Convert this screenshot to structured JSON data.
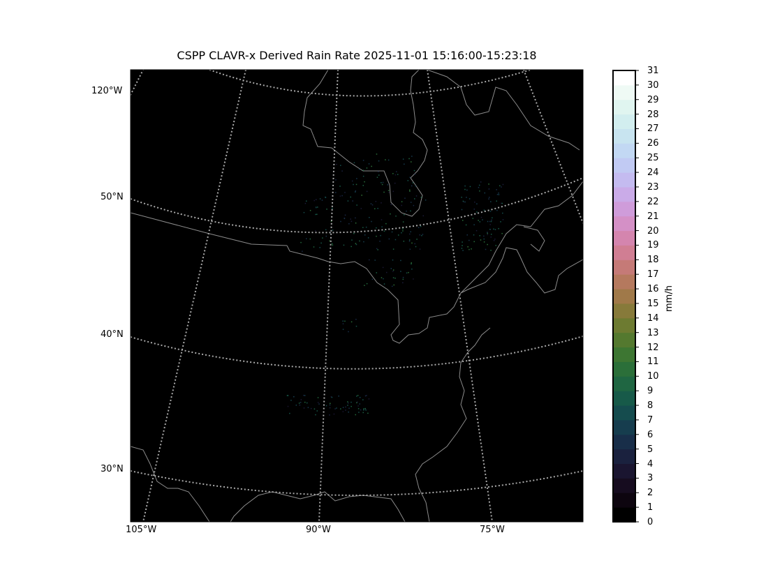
{
  "title": "CSPP CLAVR-x Derived Rain Rate 2025-11-01 15:16:00-15:23:18",
  "map": {
    "projection": "conic (curved lat/lon graticule)",
    "background_color": "#000000",
    "coastline_color": "#8c8c8c",
    "gridline_color": "#aaaaaa",
    "lat_labels": [
      "50°N",
      "40°N",
      "30°N"
    ],
    "lon_labels_left": [
      "120°W"
    ],
    "lon_labels_bottom": [
      "105°W",
      "90°W",
      "75°W"
    ]
  },
  "colorbar": {
    "label": "mm/h",
    "colormap": "cubehelix",
    "min": 0,
    "max": 31,
    "ticks": [
      "0",
      "1",
      "2",
      "3",
      "4",
      "5",
      "6",
      "7",
      "8",
      "9",
      "10",
      "11",
      "12",
      "13",
      "14",
      "15",
      "16",
      "17",
      "18",
      "19",
      "20",
      "21",
      "22",
      "23",
      "24",
      "25",
      "26",
      "27",
      "28",
      "29",
      "30",
      "31"
    ]
  }
}
